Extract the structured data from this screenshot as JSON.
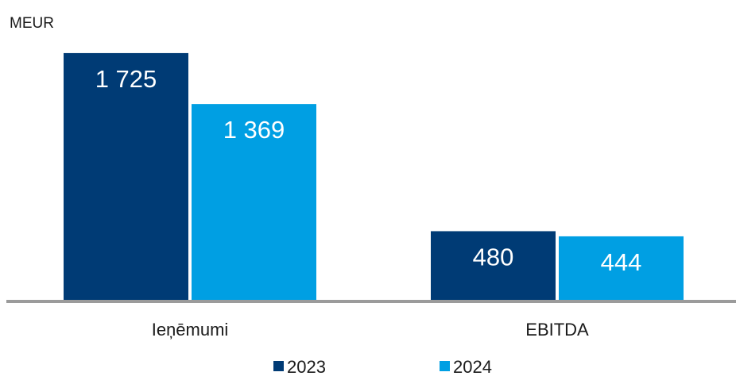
{
  "chart_data": {
    "type": "bar",
    "unit_label": "MEUR",
    "categories": [
      "Ieņēmumi",
      "EBITDA"
    ],
    "series": [
      {
        "name": "2023",
        "color": "#003B75",
        "values": [
          1725,
          480
        ],
        "labels": [
          "1 725",
          "480"
        ]
      },
      {
        "name": "2024",
        "color": "#009FE3",
        "values": [
          1369,
          444
        ],
        "labels": [
          "1 369",
          "444"
        ]
      }
    ],
    "ylim": [
      0,
      1830
    ],
    "grid": false,
    "legend": "bottom-center",
    "axis_color": "#9B9B9B",
    "text_color": "#1a1a1a"
  }
}
